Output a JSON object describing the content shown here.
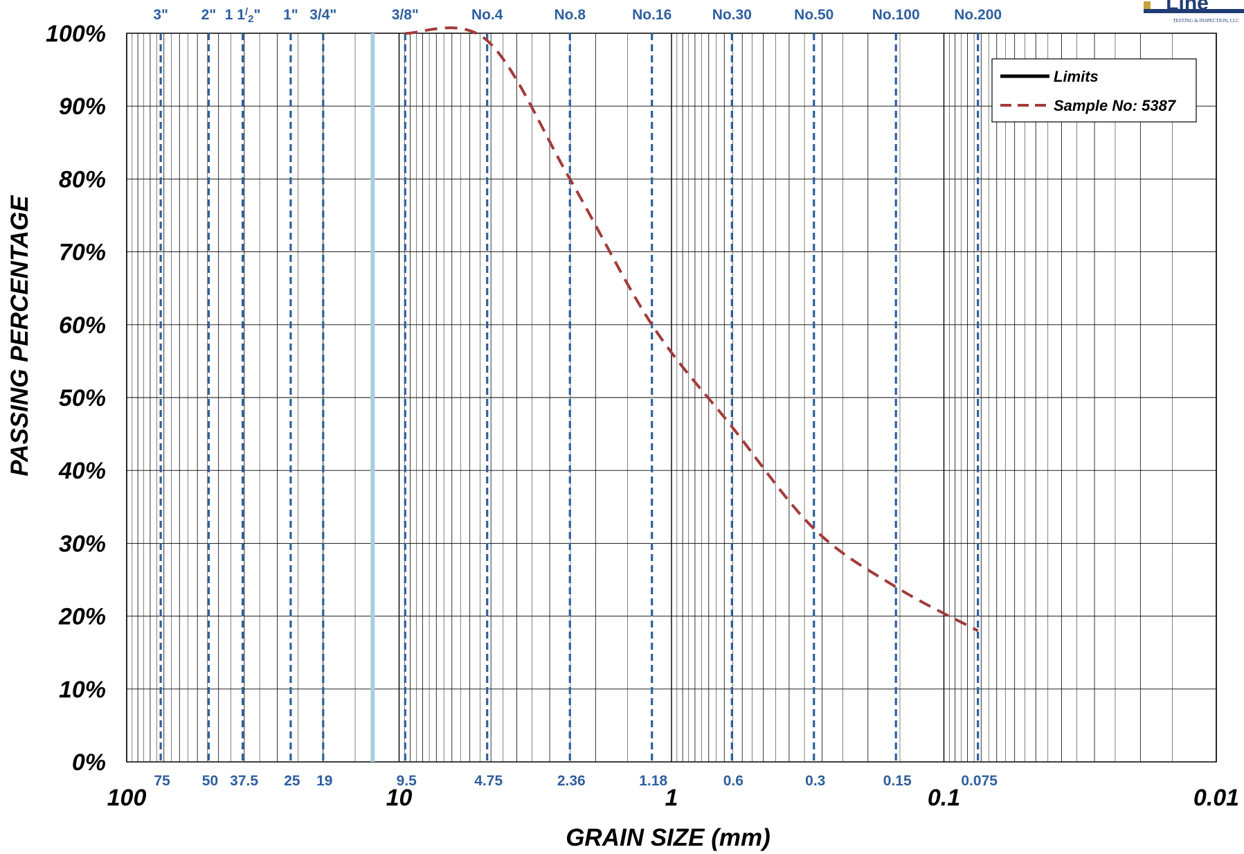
{
  "chart_data": {
    "type": "line",
    "xlabel": "GRAIN SIZE (mm)",
    "ylabel": "PASSING PERCENTAGE",
    "x_scale": "log",
    "x_reversed": true,
    "xlim": [
      100,
      0.01
    ],
    "ylim": [
      0,
      100
    ],
    "x_ticks": [
      {
        "value": 100,
        "label": "100"
      },
      {
        "value": 10,
        "label": "10"
      },
      {
        "value": 1,
        "label": "1"
      },
      {
        "value": 0.1,
        "label": "0.1"
      },
      {
        "value": 0.01,
        "label": "0.01"
      }
    ],
    "y_ticks": [
      {
        "value": 100,
        "label": "100%"
      },
      {
        "value": 90,
        "label": "90%"
      },
      {
        "value": 80,
        "label": "80%"
      },
      {
        "value": 70,
        "label": "70%"
      },
      {
        "value": 60,
        "label": "60%"
      },
      {
        "value": 50,
        "label": "50%"
      },
      {
        "value": 40,
        "label": "40%"
      },
      {
        "value": 30,
        "label": "30%"
      },
      {
        "value": 20,
        "label": "20%"
      },
      {
        "value": 10,
        "label": "10%"
      },
      {
        "value": 0,
        "label": "0%"
      }
    ],
    "grid": true,
    "sieves": [
      {
        "name": "3\"",
        "size": 75,
        "size_label": "75"
      },
      {
        "name": "2\"",
        "size": 50,
        "size_label": "50"
      },
      {
        "name": "1 1/2\"",
        "size": 37.5,
        "size_label": "37.5"
      },
      {
        "name": "1\"",
        "size": 25,
        "size_label": "25"
      },
      {
        "name": "3/4\"",
        "size": 19,
        "size_label": "19"
      },
      {
        "name": "3/8\"",
        "size": 9.5,
        "size_label": "9.5"
      },
      {
        "name": "No.4",
        "size": 4.75,
        "size_label": "4.75"
      },
      {
        "name": "No.8",
        "size": 2.36,
        "size_label": "2.36"
      },
      {
        "name": "No.16",
        "size": 1.18,
        "size_label": "1.18"
      },
      {
        "name": "No.30",
        "size": 0.6,
        "size_label": "0.6"
      },
      {
        "name": "No.50",
        "size": 0.3,
        "size_label": "0.3"
      },
      {
        "name": "No.100",
        "size": 0.15,
        "size_label": "0.15"
      },
      {
        "name": "No.200",
        "size": 0.075,
        "size_label": "0.075"
      }
    ],
    "reference_line": {
      "size": 12.5,
      "color": "#a9cde0"
    },
    "series": [
      {
        "name": "Limits",
        "style": "solid",
        "color": "#000000",
        "x": [],
        "y": []
      },
      {
        "name": "Sample No: 5387",
        "style": "dashed",
        "color": "#a33b3b",
        "x": [
          9.5,
          4.75,
          2.36,
          1.18,
          0.6,
          0.3,
          0.15,
          0.075
        ],
        "y": [
          100,
          99,
          80,
          60,
          46,
          32,
          24,
          18
        ]
      }
    ],
    "legend_position": "top-right"
  },
  "logo": {
    "name": "Line",
    "tagline": "TESTING & INSPECTION, LLC"
  },
  "colors": {
    "sieve": "#2e5f9e",
    "sample": "#a33b3b",
    "grid": "#000000"
  }
}
